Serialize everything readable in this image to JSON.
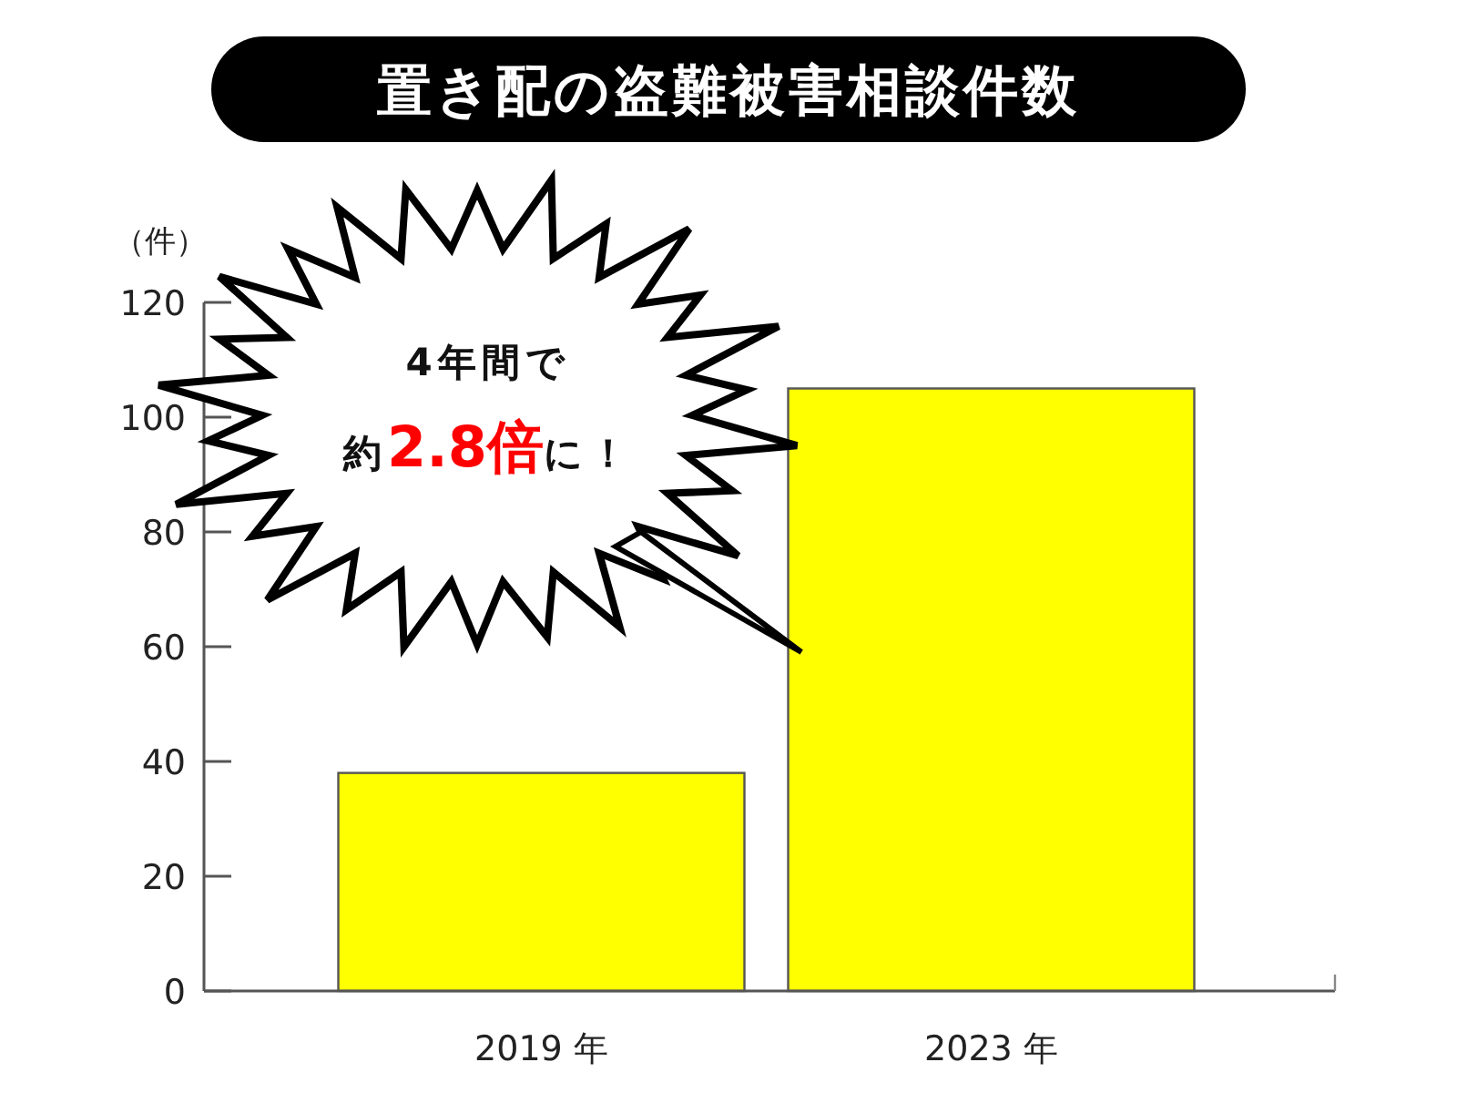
{
  "chart_data": {
    "type": "bar",
    "title": "置き配の盗難被害相談件数",
    "ylabel": "（件）",
    "categories": [
      "2019 年",
      "2023 年"
    ],
    "values": [
      38,
      105
    ],
    "color": "#ffff00",
    "ylim": [
      0,
      120
    ],
    "yticks": [
      0,
      20,
      40,
      60,
      80,
      100,
      120
    ],
    "annotations": [
      "4年間で",
      "約**2.8倍**に！"
    ]
  }
}
